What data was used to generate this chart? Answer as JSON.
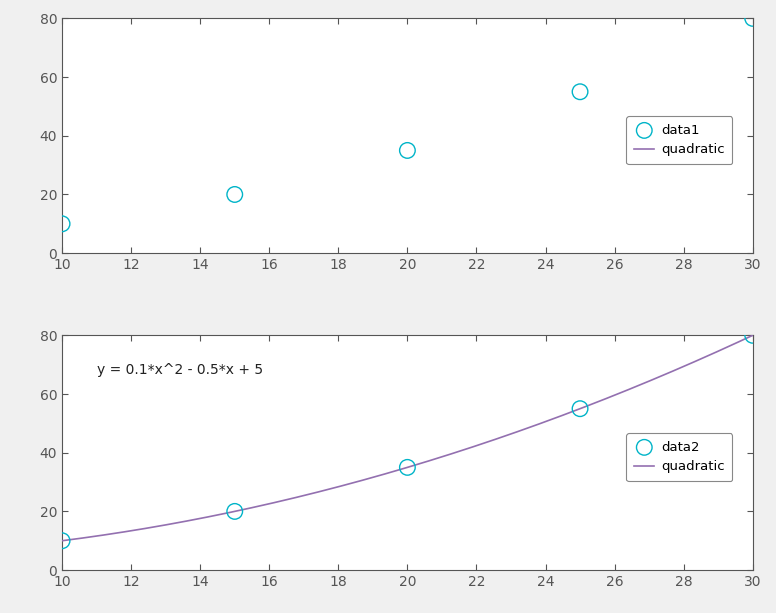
{
  "x_data": [
    10,
    15,
    20,
    25,
    30
  ],
  "y_data": [
    10,
    20,
    35,
    55,
    80
  ],
  "quad_coeffs": [
    0.1,
    -0.5,
    5
  ],
  "equation_text": "y = 0.1*x^2 - 0.5*x + 5",
  "scatter_color": "#00b4c8",
  "line_color": "#9370b0",
  "xlim": [
    10,
    30
  ],
  "ylim": [
    0,
    80
  ],
  "xticks": [
    10,
    12,
    14,
    16,
    18,
    20,
    22,
    24,
    26,
    28,
    30
  ],
  "yticks": [
    0,
    20,
    40,
    60,
    80
  ],
  "legend_label_scatter1": "data1",
  "legend_label_scatter2": "data2",
  "legend_label_line": "quadratic",
  "marker_size": 6,
  "line_width": 1.2,
  "eq_fontsize": 10,
  "fig_bg_color": "#f0f0f0",
  "ax_bg_color": "#ffffff",
  "tick_fontsize": 10,
  "tick_color": "#555555",
  "spine_color": "#555555",
  "legend_fontsize": 9.5
}
